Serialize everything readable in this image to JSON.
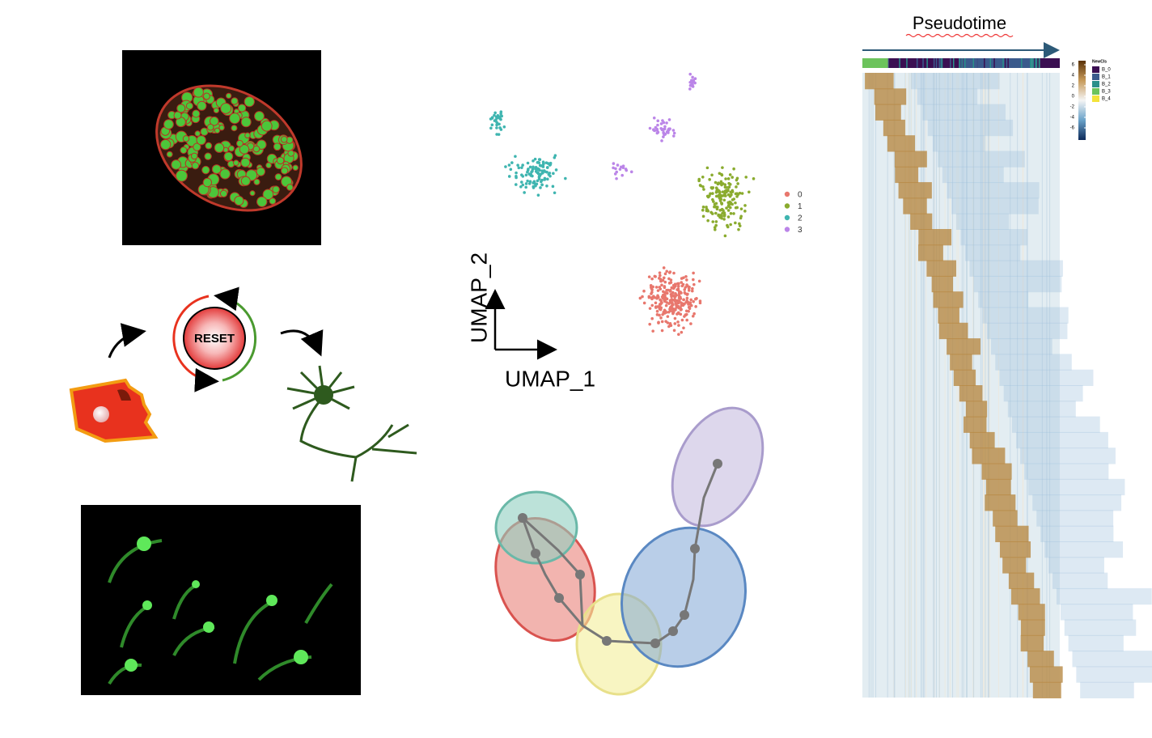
{
  "reset_diagram": {
    "label": "RESET"
  },
  "umap": {
    "x_label": "UMAP_1",
    "y_label": "UMAP_2",
    "legend": [
      {
        "label": "0",
        "color": "#e8776d"
      },
      {
        "label": "1",
        "color": "#8aab2e"
      },
      {
        "label": "2",
        "color": "#3fb5b0"
      },
      {
        "label": "3",
        "color": "#bb85e8"
      }
    ]
  },
  "heatmap": {
    "title": "Pseudotime",
    "legend_title": "NewCls",
    "clusters": [
      {
        "label": "B_0",
        "color": "#3b0f52"
      },
      {
        "label": "B_1",
        "color": "#3b5a8c"
      },
      {
        "label": "B_2",
        "color": "#2a8f8a"
      },
      {
        "label": "B_3",
        "color": "#6cc35c"
      },
      {
        "label": "B_4",
        "color": "#f3e33a"
      }
    ],
    "colorbar_ticks": [
      6,
      4,
      2,
      0,
      -2,
      -4,
      -6
    ]
  }
}
